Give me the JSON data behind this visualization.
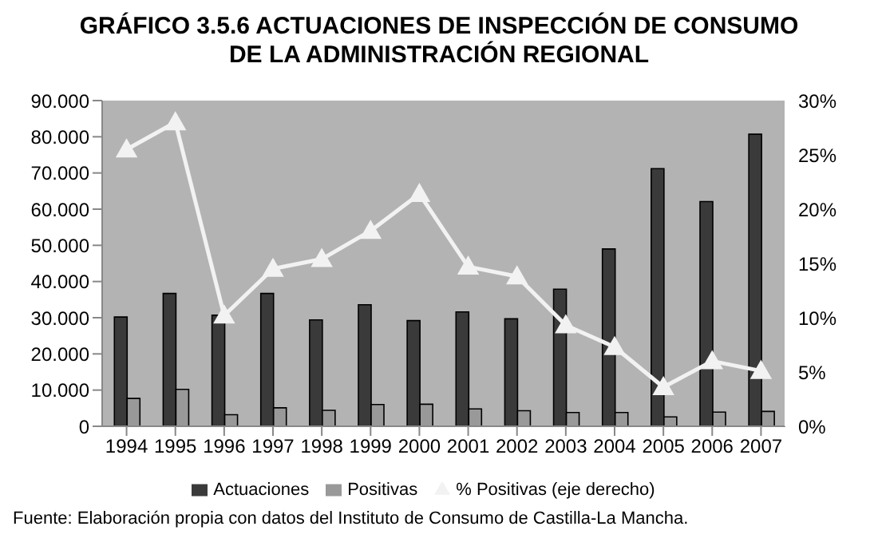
{
  "chart_data": {
    "type": "bar",
    "title": "GRÁFICO 3.5.6 ACTUACIONES DE INSPECCIÓN DE CONSUMO DE LA ADMINISTRACIÓN REGIONAL",
    "categories": [
      "1994",
      "1995",
      "1996",
      "1997",
      "1998",
      "1999",
      "2000",
      "2001",
      "2002",
      "2003",
      "2004",
      "2005",
      "2006",
      "2007"
    ],
    "series": [
      {
        "name": "Actuaciones",
        "color": "#3a3a3a",
        "values": [
          30200,
          36700,
          30700,
          36700,
          29400,
          33600,
          29200,
          31600,
          29700,
          37900,
          49000,
          71200,
          62100,
          80700
        ]
      },
      {
        "name": "Positivas",
        "color": "#999999",
        "values": [
          7700,
          10200,
          3200,
          5100,
          4400,
          6000,
          6100,
          4800,
          4300,
          3800,
          3800,
          2600,
          3900,
          4100
        ]
      },
      {
        "name": "% Positivas (eje derecho)",
        "type": "line",
        "axis": "y2",
        "color": "#f2f2f2",
        "values": [
          25.5,
          28.0,
          10.2,
          14.5,
          15.4,
          18.0,
          21.4,
          14.7,
          13.8,
          9.3,
          7.3,
          3.6,
          6.0,
          5.1
        ]
      }
    ],
    "ylim": [
      0,
      90000
    ],
    "yticks": [
      0,
      {
        "value": 10000,
        "label": "10.000"
      },
      {
        "value": 20000,
        "label": "20.000"
      },
      {
        "value": 30000,
        "label": "30.000"
      },
      {
        "value": 40000,
        "label": "40.000"
      },
      {
        "value": 50000,
        "label": "50.000"
      },
      {
        "value": 60000,
        "label": "60.000"
      },
      {
        "value": 70000,
        "label": "70.000"
      },
      {
        "value": 80000,
        "label": "80.000"
      },
      {
        "value": 90000,
        "label": "90.000"
      }
    ],
    "y2lim": [
      0,
      30
    ],
    "y2ticks": [
      {
        "value": 0,
        "label": "0%"
      },
      {
        "value": 5,
        "label": "5%"
      },
      {
        "value": 10,
        "label": "10%"
      },
      {
        "value": 15,
        "label": "15%"
      },
      {
        "value": 20,
        "label": "20%"
      },
      {
        "value": 25,
        "label": "25%"
      },
      {
        "value": 30,
        "label": "30%"
      }
    ],
    "marker": "triangle",
    "legend": "bottom",
    "annotations": [
      "Fuente: Elaboración propia con datos del Instituto de Consumo de Castilla-La Mancha."
    ]
  }
}
